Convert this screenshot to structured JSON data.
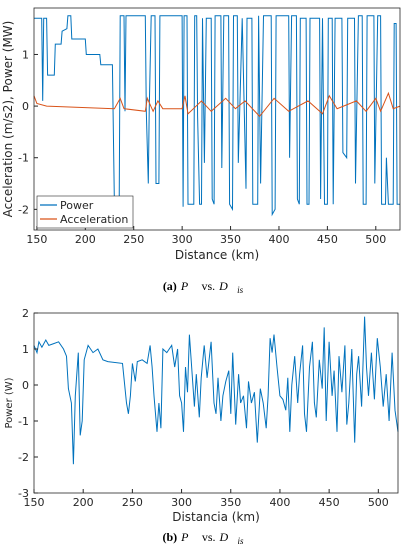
{
  "chart_data": [
    {
      "type": "line",
      "xlabel": "Distance (km)",
      "ylabel": "Acceleration (m/s2), Power (MW)",
      "caption": {
        "tag": "(a)",
        "p": "P⃗",
        "vs": "vs.",
        "d": "D⃗",
        "sub": "is"
      },
      "xlim": [
        147,
        525
      ],
      "ylim": [
        -2.4,
        1.9
      ],
      "xticks": [
        150,
        200,
        250,
        300,
        350,
        400,
        450,
        500
      ],
      "yticks": [
        -2,
        -1,
        0,
        1
      ],
      "legend": "lower left",
      "series": [
        {
          "name": "Power",
          "color": "#0072bd",
          "x": [
            147,
            155,
            156,
            157,
            160,
            161,
            168,
            169,
            175,
            176,
            181,
            182,
            185,
            186,
            200,
            201,
            215,
            216,
            228,
            230,
            235,
            236,
            240,
            241,
            242,
            262,
            263,
            265,
            266,
            268,
            272,
            273,
            276,
            277,
            300,
            301,
            302,
            305,
            306,
            312,
            313,
            315,
            316,
            318,
            320,
            321,
            323,
            325,
            330,
            331,
            333,
            334,
            340,
            341,
            343,
            348,
            349,
            352,
            353,
            357,
            358,
            362,
            366,
            367,
            372,
            373,
            378,
            379,
            381,
            384,
            392,
            393,
            396,
            397,
            410,
            411,
            413,
            418,
            419,
            421,
            422,
            428,
            429,
            431,
            432,
            442,
            443,
            445,
            447,
            450,
            451,
            455,
            456,
            458,
            465,
            466,
            470,
            471,
            478,
            479,
            482,
            486,
            487,
            490,
            491,
            498,
            499,
            502,
            505,
            506,
            510,
            511,
            513,
            518,
            519,
            521,
            522,
            525
          ],
          "values": [
            1.7,
            1.7,
            0.1,
            1.7,
            1.7,
            0.6,
            0.6,
            1.2,
            1.2,
            1.45,
            1.5,
            1.75,
            1.75,
            1.3,
            1.3,
            1.0,
            1.0,
            0.8,
            0.8,
            -1.9,
            -1.9,
            1.75,
            1.75,
            -0.1,
            1.75,
            1.75,
            -0.1,
            -1.5,
            -0.1,
            1.75,
            1.75,
            -1.5,
            -1.5,
            1.75,
            1.75,
            -1.95,
            1.75,
            1.75,
            -1.9,
            -1.9,
            1.75,
            1.75,
            -0.2,
            -1.9,
            -1.9,
            1.7,
            -1.1,
            1.7,
            1.7,
            -1.8,
            -1.9,
            1.75,
            1.75,
            -1.2,
            1.75,
            1.75,
            -1.9,
            -2.0,
            1.75,
            1.75,
            -1.1,
            1.7,
            -1.6,
            1.7,
            1.7,
            -1.9,
            -1.9,
            1.75,
            -1.5,
            1.75,
            1.75,
            -2.1,
            -2.0,
            1.75,
            1.75,
            -1.0,
            1.75,
            1.75,
            -1.8,
            -1.9,
            1.7,
            1.7,
            -1.9,
            -1.9,
            1.7,
            1.7,
            -1.8,
            1.7,
            -1.9,
            -1.9,
            1.7,
            1.7,
            -1.9,
            1.7,
            1.7,
            -0.9,
            -1.0,
            1.7,
            1.7,
            -1.5,
            1.75,
            1.75,
            -1.9,
            -1.9,
            1.75,
            1.75,
            -1.5,
            1.75,
            1.75,
            -1.9,
            -1.9,
            -1.0,
            -1.9,
            -1.9,
            1.6,
            1.6,
            -1.9,
            -1.9
          ]
        },
        {
          "name": "Acceleration",
          "color": "#d95319",
          "x": [
            147,
            150,
            160,
            230,
            236,
            240,
            262,
            264,
            270,
            275,
            280,
            300,
            303,
            306,
            320,
            330,
            345,
            355,
            365,
            380,
            395,
            410,
            430,
            445,
            452,
            460,
            480,
            490,
            500,
            505,
            513,
            518,
            525
          ],
          "values": [
            0.2,
            0.05,
            0,
            -0.05,
            0.15,
            -0.05,
            -0.1,
            0.15,
            -0.1,
            0.1,
            -0.05,
            -0.05,
            0.2,
            -0.15,
            0.1,
            -0.1,
            0.15,
            -0.05,
            0.1,
            -0.2,
            0.15,
            -0.1,
            0.1,
            -0.15,
            0.2,
            -0.05,
            0.1,
            -0.1,
            0.15,
            -0.1,
            0.25,
            -0.05,
            0
          ]
        }
      ]
    },
    {
      "type": "line",
      "xlabel": "Distancia (km)",
      "ylabel": "Power (W)",
      "caption": {
        "tag": "(b)",
        "p": "P⃗",
        "vs": "vs.",
        "d": "D⃗",
        "sub": "is"
      },
      "xlim": [
        150,
        520
      ],
      "ylim": [
        -3,
        2
      ],
      "xticks": [
        150,
        200,
        250,
        300,
        350,
        400,
        450,
        500
      ],
      "yticks": [
        -3,
        -2,
        -1,
        0,
        1,
        2
      ],
      "series": [
        {
          "color": "#0072bd",
          "x": [
            150,
            153,
            155,
            158,
            162,
            165,
            170,
            175,
            180,
            183,
            185,
            188,
            190,
            192,
            195,
            197,
            199,
            201,
            205,
            210,
            215,
            220,
            225,
            240,
            244,
            246,
            248,
            250,
            253,
            255,
            260,
            265,
            268,
            270,
            272,
            275,
            277,
            279,
            281,
            285,
            290,
            293,
            296,
            298,
            300,
            302,
            304,
            306,
            308,
            310,
            313,
            315,
            318,
            320,
            323,
            326,
            330,
            333,
            335,
            337,
            340,
            342,
            345,
            348,
            350,
            352,
            355,
            358,
            360,
            363,
            366,
            368,
            371,
            374,
            377,
            380,
            383,
            386,
            388,
            390,
            392,
            394,
            397,
            400,
            403,
            406,
            408,
            410,
            412,
            415,
            418,
            420,
            423,
            425,
            427,
            430,
            433,
            435,
            437,
            440,
            443,
            445,
            447,
            450,
            453,
            455,
            458,
            460,
            463,
            466,
            468,
            470,
            473,
            476,
            478,
            480,
            483,
            486,
            488,
            490,
            493,
            496,
            499,
            502,
            505,
            508,
            511,
            514,
            517,
            520
          ],
          "values": [
            1.1,
            0.9,
            1.2,
            1.05,
            1.25,
            1.1,
            1.15,
            1.2,
            1.0,
            0.8,
            -0.1,
            -0.5,
            -2.2,
            -0.3,
            0.9,
            -1.4,
            -1.0,
            0.7,
            1.1,
            0.9,
            1.0,
            0.7,
            0.65,
            0.6,
            -0.5,
            -0.8,
            -0.3,
            0.6,
            0.1,
            0.65,
            0.7,
            0.6,
            1.1,
            0.5,
            -0.3,
            -1.3,
            -0.5,
            -1.2,
            1.0,
            0.9,
            1.1,
            0.5,
            1.0,
            -0.3,
            -0.5,
            -1.3,
            0.5,
            -0.2,
            1.4,
            0.6,
            -0.6,
            0.3,
            -0.9,
            0.2,
            1.1,
            0.2,
            1.2,
            -0.5,
            -0.8,
            0.2,
            -1.0,
            -0.3,
            0.1,
            0.4,
            -0.8,
            0.9,
            -1.1,
            0.3,
            -0.5,
            -0.3,
            -1.2,
            0.1,
            -0.5,
            -0.2,
            -1.6,
            -0.1,
            -0.5,
            -1.2,
            -0.3,
            1.3,
            0.9,
            1.4,
            0.5,
            -0.3,
            -0.4,
            -0.7,
            0.2,
            -1.3,
            0.0,
            0.8,
            -0.5,
            0.3,
            1.1,
            -0.8,
            -1.3,
            0.5,
            1.2,
            -0.5,
            -0.9,
            0.7,
            -0.1,
            1.6,
            -1.0,
            1.2,
            -0.3,
            0.4,
            -1.3,
            0.8,
            -0.2,
            1.1,
            -1.1,
            -0.5,
            1.0,
            -1.6,
            0.3,
            0.8,
            -0.6,
            1.9,
            0.5,
            -0.3,
            0.9,
            -0.4,
            1.3,
            0.5,
            -0.6,
            0.3,
            -1.0,
            0.9,
            -0.7,
            -1.3
          ]
        }
      ]
    }
  ]
}
